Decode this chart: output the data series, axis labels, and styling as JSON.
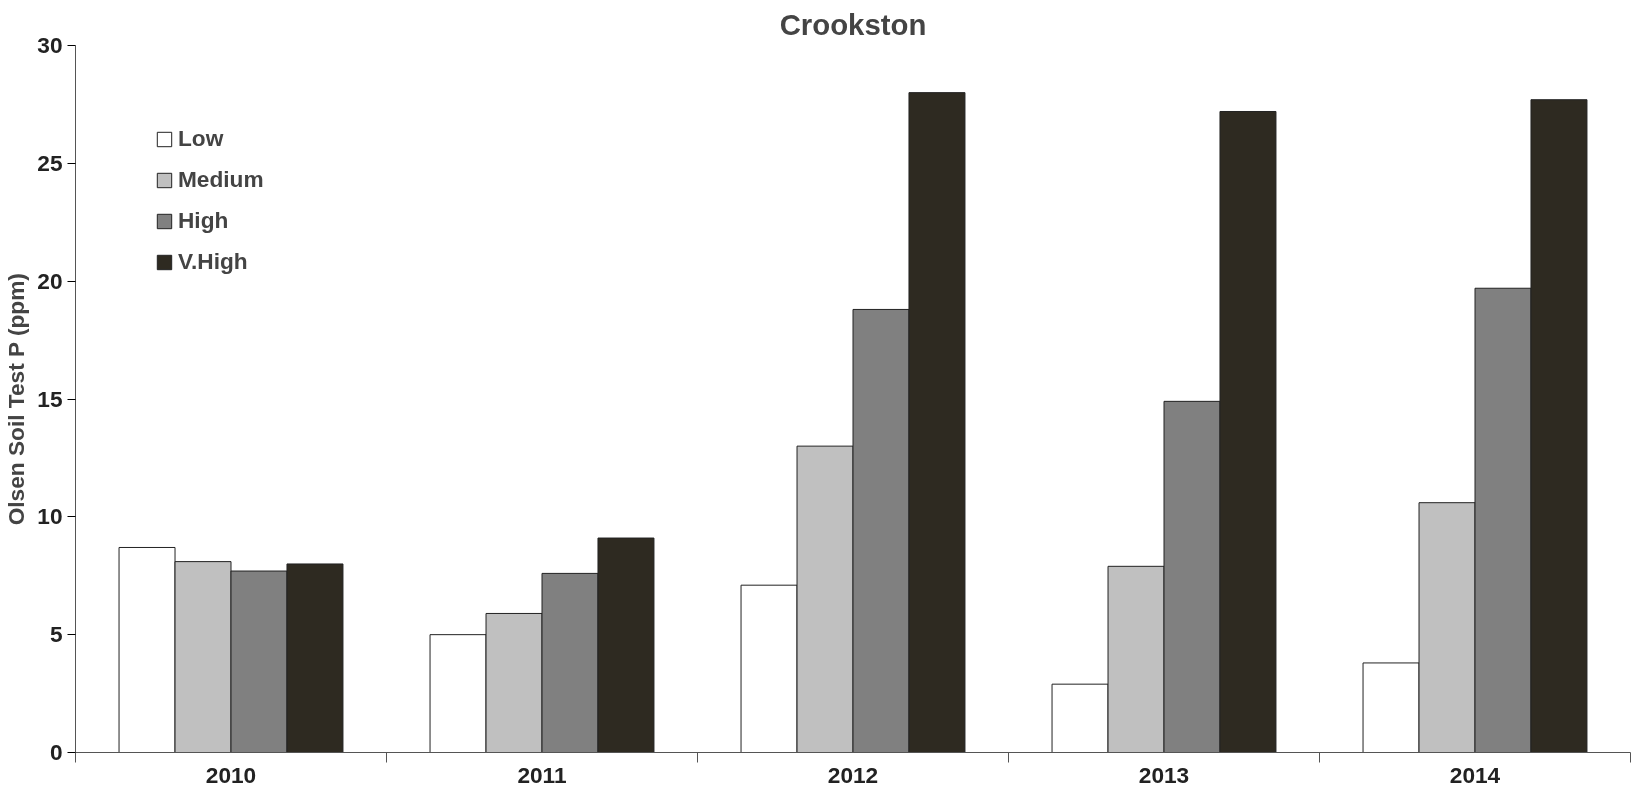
{
  "chart_data": {
    "type": "bar",
    "title": "Crookston",
    "ylabel": "Olsen Soil Test P (ppm)",
    "categories": [
      "2010",
      "2011",
      "2012",
      "2013",
      "2014"
    ],
    "series": [
      {
        "name": "Low",
        "color": "#ffffff",
        "values": [
          8.7,
          5.0,
          7.1,
          2.9,
          3.8
        ]
      },
      {
        "name": "Medium",
        "color": "#c0c0c0",
        "values": [
          8.1,
          5.9,
          13.0,
          7.9,
          10.6
        ]
      },
      {
        "name": "High",
        "color": "#808080",
        "values": [
          7.7,
          7.6,
          18.8,
          14.9,
          19.7
        ]
      },
      {
        "name": "V.High",
        "color": "#2e2a21",
        "values": [
          8.0,
          9.1,
          28.0,
          27.2,
          27.7
        ]
      }
    ],
    "ylim": [
      0,
      30
    ],
    "yticks": [
      0,
      5,
      10,
      15,
      20,
      25,
      30
    ],
    "grid": false,
    "legend": "top left"
  }
}
